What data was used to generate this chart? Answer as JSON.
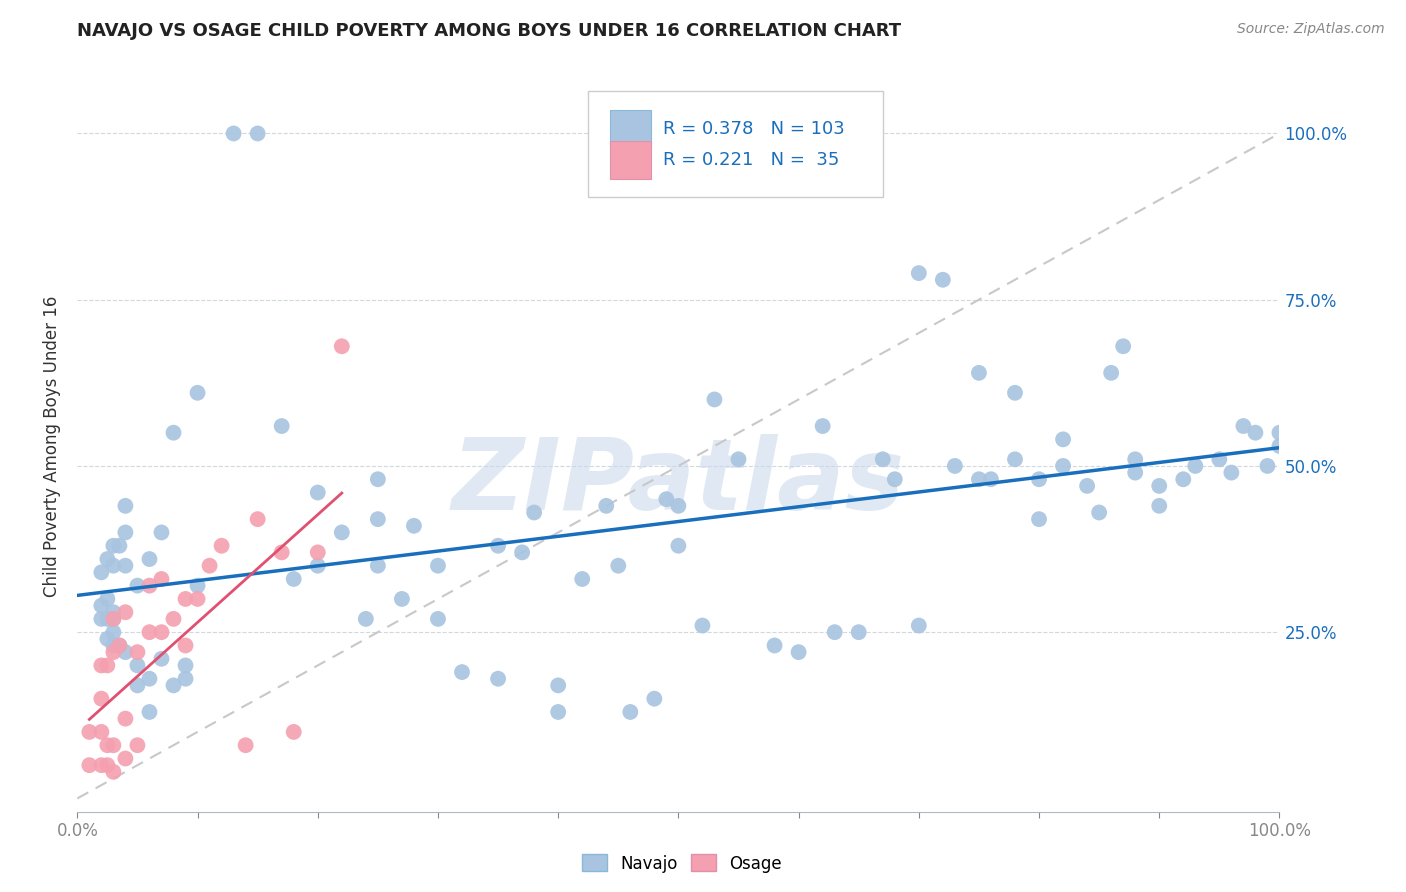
{
  "title": "NAVAJO VS OSAGE CHILD POVERTY AMONG BOYS UNDER 16 CORRELATION CHART",
  "source": "Source: ZipAtlas.com",
  "ylabel": "Child Poverty Among Boys Under 16",
  "xlim": [
    0,
    1
  ],
  "ylim": [
    -0.02,
    1.08
  ],
  "xtick_labels_left": "0.0%",
  "xtick_labels_right": "100.0%",
  "ytick_labels": [
    "25.0%",
    "50.0%",
    "75.0%",
    "100.0%"
  ],
  "ytick_vals": [
    0.25,
    0.5,
    0.75,
    1.0
  ],
  "navajo_color": "#a8c4e0",
  "osage_color": "#f4a0b0",
  "navajo_R": 0.378,
  "navajo_N": 103,
  "osage_R": 0.221,
  "osage_N": 35,
  "navajo_line_color": "#1a6fbd",
  "osage_line_color": "#e05070",
  "dashed_line_color": "#c8c8c8",
  "watermark": "ZIPatlas",
  "background_color": "#ffffff",
  "navajo_x": [
    0.02,
    0.02,
    0.02,
    0.025,
    0.025,
    0.025,
    0.025,
    0.03,
    0.03,
    0.03,
    0.03,
    0.03,
    0.03,
    0.035,
    0.035,
    0.04,
    0.04,
    0.04,
    0.04,
    0.05,
    0.05,
    0.05,
    0.06,
    0.06,
    0.06,
    0.07,
    0.07,
    0.08,
    0.08,
    0.09,
    0.09,
    0.1,
    0.1,
    0.13,
    0.15,
    0.17,
    0.18,
    0.2,
    0.2,
    0.22,
    0.24,
    0.25,
    0.25,
    0.25,
    0.27,
    0.28,
    0.3,
    0.3,
    0.32,
    0.35,
    0.35,
    0.37,
    0.38,
    0.4,
    0.4,
    0.42,
    0.44,
    0.45,
    0.46,
    0.48,
    0.49,
    0.5,
    0.5,
    0.52,
    0.53,
    0.55,
    0.58,
    0.6,
    0.62,
    0.63,
    0.65,
    0.67,
    0.68,
    0.7,
    0.7,
    0.72,
    0.73,
    0.75,
    0.75,
    0.76,
    0.78,
    0.78,
    0.8,
    0.8,
    0.82,
    0.82,
    0.84,
    0.85,
    0.86,
    0.87,
    0.88,
    0.88,
    0.9,
    0.9,
    0.92,
    0.93,
    0.95,
    0.96,
    0.97,
    0.98,
    0.99,
    1.0,
    1.0
  ],
  "navajo_y": [
    0.27,
    0.29,
    0.34,
    0.24,
    0.27,
    0.3,
    0.36,
    0.23,
    0.25,
    0.27,
    0.28,
    0.35,
    0.38,
    0.23,
    0.38,
    0.22,
    0.35,
    0.4,
    0.44,
    0.17,
    0.2,
    0.32,
    0.13,
    0.18,
    0.36,
    0.21,
    0.4,
    0.17,
    0.55,
    0.18,
    0.2,
    0.32,
    0.61,
    1.0,
    1.0,
    0.56,
    0.33,
    0.35,
    0.46,
    0.4,
    0.27,
    0.35,
    0.42,
    0.48,
    0.3,
    0.41,
    0.27,
    0.35,
    0.19,
    0.18,
    0.38,
    0.37,
    0.43,
    0.13,
    0.17,
    0.33,
    0.44,
    0.35,
    0.13,
    0.15,
    0.45,
    0.38,
    0.44,
    0.26,
    0.6,
    0.51,
    0.23,
    0.22,
    0.56,
    0.25,
    0.25,
    0.51,
    0.48,
    0.26,
    0.79,
    0.78,
    0.5,
    0.48,
    0.64,
    0.48,
    0.51,
    0.61,
    0.42,
    0.48,
    0.5,
    0.54,
    0.47,
    0.43,
    0.64,
    0.68,
    0.49,
    0.51,
    0.44,
    0.47,
    0.48,
    0.5,
    0.51,
    0.49,
    0.56,
    0.55,
    0.5,
    0.53,
    0.55
  ],
  "osage_x": [
    0.01,
    0.01,
    0.02,
    0.02,
    0.02,
    0.02,
    0.025,
    0.025,
    0.025,
    0.03,
    0.03,
    0.03,
    0.03,
    0.035,
    0.04,
    0.04,
    0.04,
    0.05,
    0.05,
    0.06,
    0.06,
    0.07,
    0.07,
    0.08,
    0.09,
    0.09,
    0.1,
    0.11,
    0.12,
    0.14,
    0.15,
    0.17,
    0.18,
    0.2,
    0.22
  ],
  "osage_y": [
    0.05,
    0.1,
    0.05,
    0.1,
    0.15,
    0.2,
    0.05,
    0.08,
    0.2,
    0.04,
    0.08,
    0.22,
    0.27,
    0.23,
    0.06,
    0.12,
    0.28,
    0.08,
    0.22,
    0.25,
    0.32,
    0.25,
    0.33,
    0.27,
    0.23,
    0.3,
    0.3,
    0.35,
    0.38,
    0.08,
    0.42,
    0.37,
    0.1,
    0.37,
    0.68
  ]
}
